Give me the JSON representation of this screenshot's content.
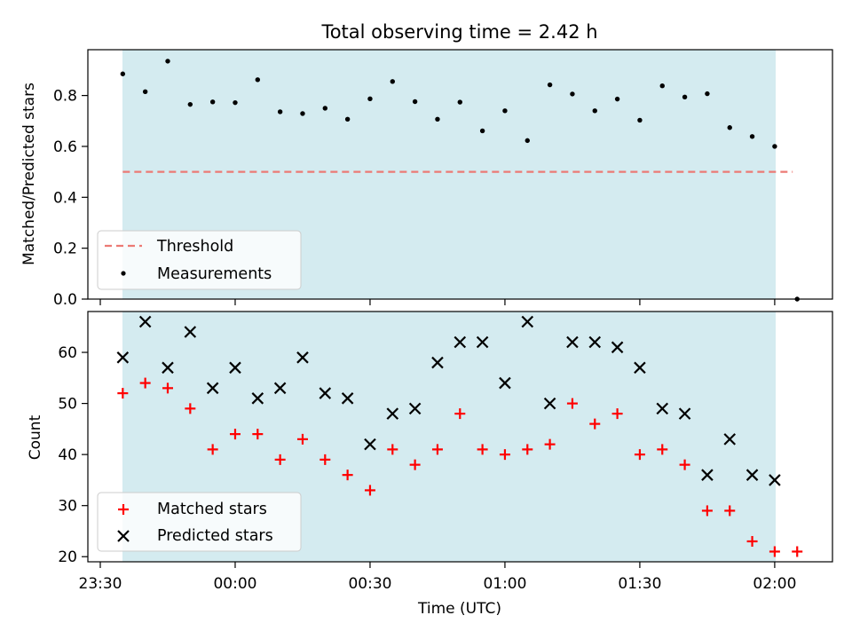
{
  "chart_data": [
    {
      "type": "scatter",
      "title": "Total observing time = 2.42 h",
      "xlabel": "",
      "ylabel": "Matched/Predicted stars",
      "ylim": [
        0,
        0.98
      ],
      "yticks": [
        "0.0",
        "0.2",
        "0.4",
        "0.6",
        "0.8"
      ],
      "ytick_values": [
        0,
        0.2,
        0.4,
        0.6,
        0.8
      ],
      "grid": false,
      "legend_position": "lower-left",
      "shaded_interval": [
        "23:35",
        "02:00"
      ],
      "shade_color": "#d4ebf0",
      "series": [
        {
          "name": "Threshold",
          "kind": "dashed-line",
          "color": "#ec7a74",
          "x": [
            "23:35",
            "02:04"
          ],
          "y": [
            0.5,
            0.5
          ]
        },
        {
          "name": "Measurements",
          "kind": "dot",
          "color": "#000000",
          "x": [
            "23:35",
            "23:40",
            "23:45",
            "23:50",
            "23:55",
            "00:00",
            "00:05",
            "00:10",
            "00:15",
            "00:20",
            "00:25",
            "00:30",
            "00:35",
            "00:40",
            "00:45",
            "00:50",
            "00:55",
            "01:00",
            "01:05",
            "01:10",
            "01:15",
            "01:20",
            "01:25",
            "01:30",
            "01:35",
            "01:40",
            "01:45",
            "01:50",
            "01:55",
            "02:00",
            "02:05"
          ],
          "y": [
            0.885,
            0.815,
            0.935,
            0.765,
            0.775,
            0.772,
            0.862,
            0.736,
            0.729,
            0.75,
            0.707,
            0.787,
            0.855,
            0.776,
            0.707,
            0.774,
            0.661,
            0.74,
            0.623,
            0.842,
            0.806,
            0.74,
            0.786,
            0.703,
            0.838,
            0.794,
            0.807,
            0.674,
            0.639,
            0.6,
            0.0
          ]
        }
      ]
    },
    {
      "type": "scatter",
      "title": "",
      "xlabel": "Time (UTC)",
      "ylabel": "Count",
      "ylim": [
        19,
        68
      ],
      "yticks": [
        "20",
        "30",
        "40",
        "50",
        "60"
      ],
      "ytick_values": [
        20,
        30,
        40,
        50,
        60
      ],
      "xticks": [
        "23:30",
        "00:00",
        "00:30",
        "01:00",
        "01:30",
        "02:00"
      ],
      "grid": false,
      "legend_position": "lower-left",
      "shaded_interval": [
        "23:35",
        "02:00"
      ],
      "shade_color": "#d4ebf0",
      "series": [
        {
          "name": "Matched stars",
          "kind": "plus",
          "color": "#ff0000",
          "x": [
            "23:35",
            "23:40",
            "23:45",
            "23:50",
            "23:55",
            "00:00",
            "00:05",
            "00:10",
            "00:15",
            "00:20",
            "00:25",
            "00:30",
            "00:35",
            "00:40",
            "00:45",
            "00:50",
            "00:55",
            "01:00",
            "01:05",
            "01:10",
            "01:15",
            "01:20",
            "01:25",
            "01:30",
            "01:35",
            "01:40",
            "01:45",
            "01:50",
            "01:55",
            "02:00",
            "02:05"
          ],
          "y": [
            52,
            54,
            53,
            49,
            41,
            44,
            44,
            39,
            43,
            39,
            36,
            33,
            41,
            38,
            41,
            48,
            41,
            40,
            41,
            42,
            50,
            46,
            48,
            40,
            41,
            38,
            29,
            29,
            23,
            21,
            21
          ]
        },
        {
          "name": "Predicted stars",
          "kind": "x",
          "color": "#000000",
          "x": [
            "23:35",
            "23:40",
            "23:45",
            "23:50",
            "23:55",
            "00:00",
            "00:05",
            "00:10",
            "00:15",
            "00:20",
            "00:25",
            "00:30",
            "00:35",
            "00:40",
            "00:45",
            "00:50",
            "00:55",
            "01:00",
            "01:05",
            "01:10",
            "01:15",
            "01:20",
            "01:25",
            "01:30",
            "01:35",
            "01:40",
            "01:45",
            "01:50",
            "01:55",
            "02:00"
          ],
          "y": [
            59,
            66,
            57,
            64,
            53,
            57,
            51,
            53,
            59,
            52,
            51,
            42,
            48,
            49,
            58,
            62,
            62,
            54,
            66,
            50,
            62,
            62,
            61,
            57,
            49,
            48,
            36,
            43,
            36,
            35
          ]
        }
      ]
    }
  ]
}
